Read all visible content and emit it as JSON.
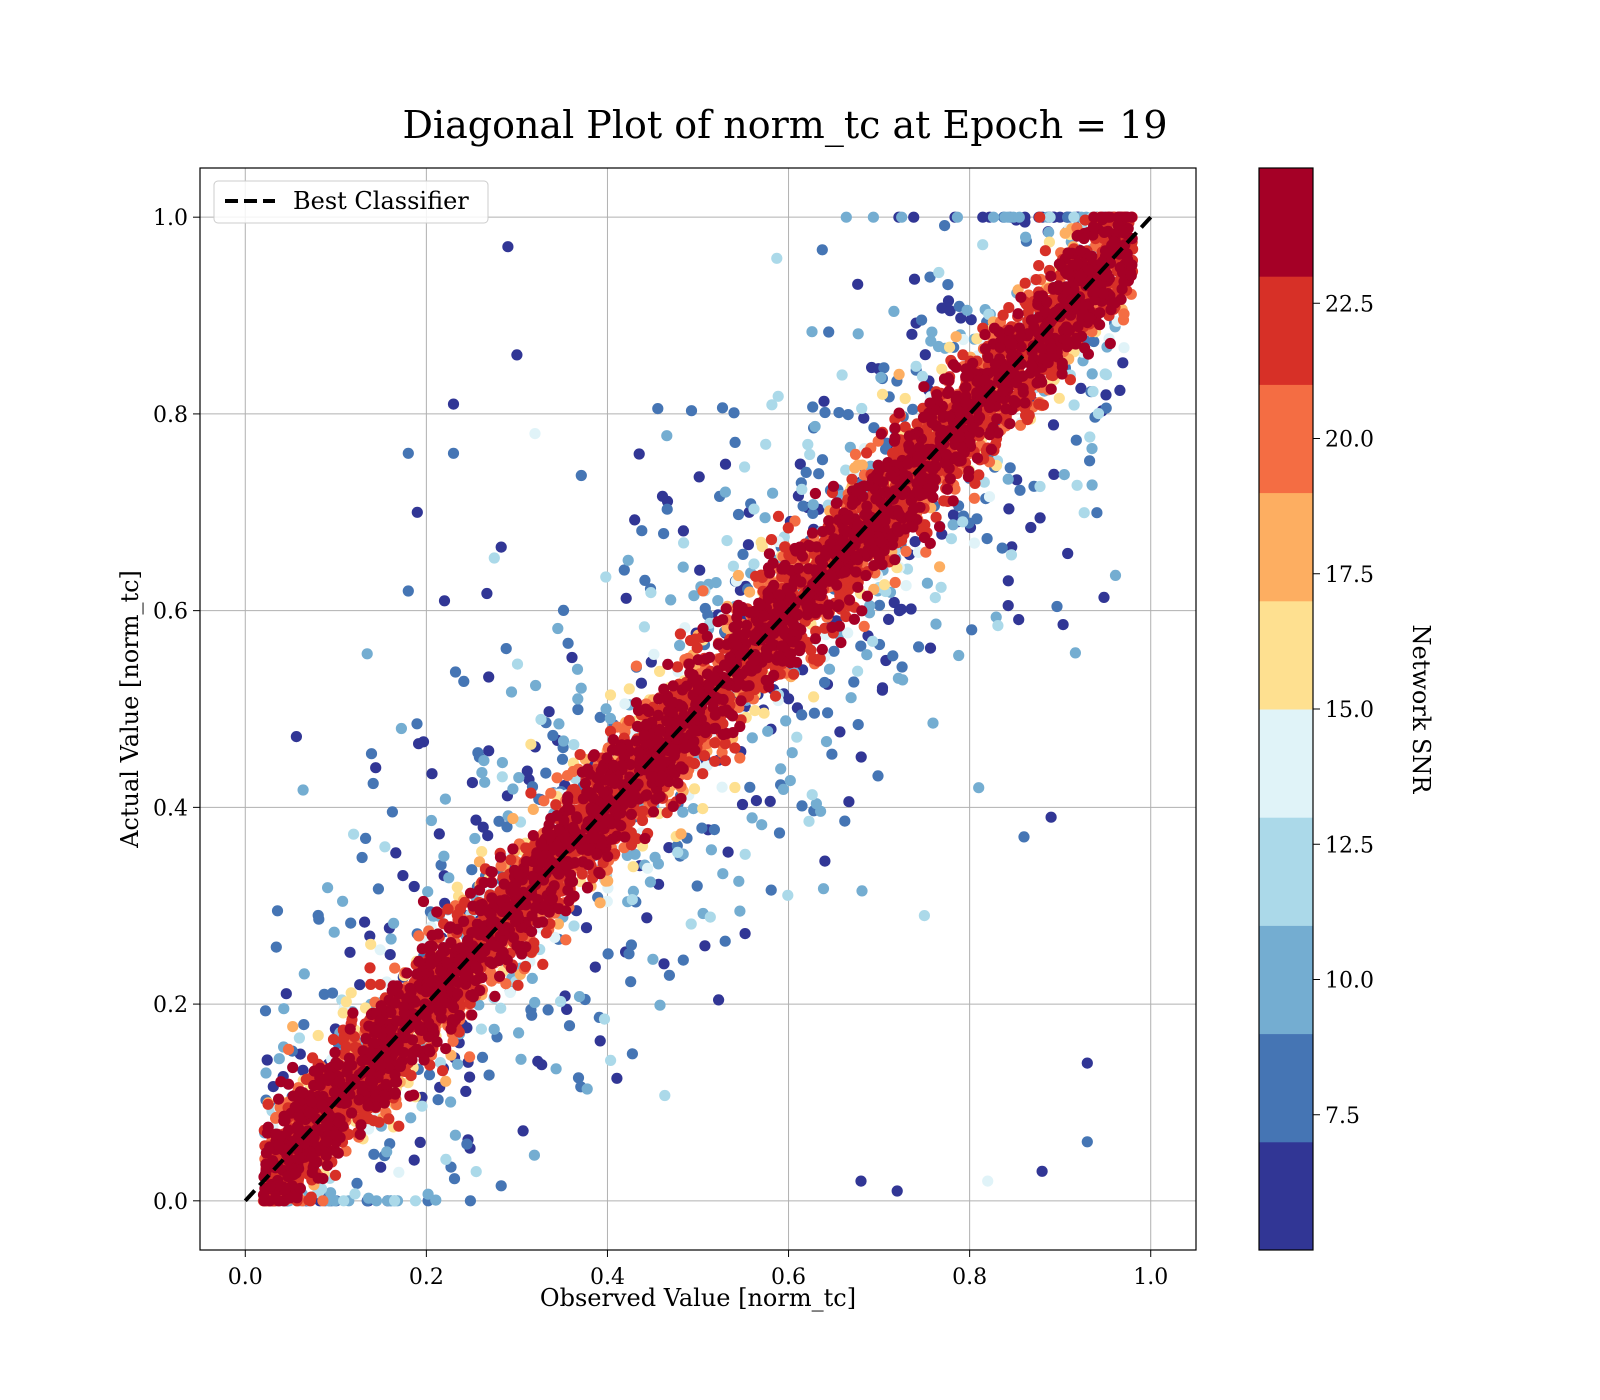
{
  "chart_data": {
    "type": "scatter",
    "title": "Diagonal Plot of norm_tc at Epoch = 19",
    "xlabel": "Observed Value [norm_tc]",
    "ylabel": "Actual Value [norm_tc]",
    "xlim": [
      -0.05,
      1.05
    ],
    "ylim": [
      -0.05,
      1.05
    ],
    "xticks": [
      "0.0",
      "0.2",
      "0.4",
      "0.6",
      "0.8",
      "1.0"
    ],
    "yticks": [
      "0.0",
      "0.2",
      "0.4",
      "0.6",
      "0.8",
      "1.0"
    ],
    "grid": true,
    "legend": {
      "placement": "top-left",
      "entries": [
        "Best Classifier"
      ]
    },
    "reference_line": {
      "name": "Best Classifier",
      "style": "dashed",
      "color": "#000000",
      "x": [
        0,
        1
      ],
      "y": [
        0,
        1
      ]
    },
    "colorbar": {
      "label": "Network SNR",
      "range": [
        5,
        25
      ],
      "ticks": [
        "7.5",
        "10.0",
        "12.5",
        "15.0",
        "17.5",
        "20.0",
        "22.5"
      ],
      "tick_values": [
        7.5,
        10.0,
        12.5,
        15.0,
        17.5,
        20.0,
        22.5
      ],
      "colors": [
        "#313695",
        "#4575b4",
        "#74add1",
        "#abd9e9",
        "#e0f3f8",
        "#fee090",
        "#fdae61",
        "#f46d43",
        "#d73027",
        "#a50026"
      ]
    },
    "points_note": "Points concentrate tightly along y = x with high SNR (dark red/orange); low SNR points (dark blue) scatter widely.",
    "sample_points": [
      {
        "x": 0.05,
        "y": 0.06,
        "snr": 24
      },
      {
        "x": 0.1,
        "y": 0.12,
        "snr": 23
      },
      {
        "x": 0.15,
        "y": 0.13,
        "snr": 21
      },
      {
        "x": 0.2,
        "y": 0.22,
        "snr": 24
      },
      {
        "x": 0.25,
        "y": 0.24,
        "snr": 19
      },
      {
        "x": 0.3,
        "y": 0.31,
        "snr": 23
      },
      {
        "x": 0.35,
        "y": 0.33,
        "snr": 22
      },
      {
        "x": 0.4,
        "y": 0.41,
        "snr": 24
      },
      {
        "x": 0.45,
        "y": 0.46,
        "snr": 20
      },
      {
        "x": 0.5,
        "y": 0.48,
        "snr": 23
      },
      {
        "x": 0.55,
        "y": 0.56,
        "snr": 24
      },
      {
        "x": 0.6,
        "y": 0.61,
        "snr": 21
      },
      {
        "x": 0.65,
        "y": 0.64,
        "snr": 23
      },
      {
        "x": 0.7,
        "y": 0.72,
        "snr": 24
      },
      {
        "x": 0.75,
        "y": 0.74,
        "snr": 22
      },
      {
        "x": 0.8,
        "y": 0.81,
        "snr": 23
      },
      {
        "x": 0.85,
        "y": 0.84,
        "snr": 24
      },
      {
        "x": 0.9,
        "y": 0.91,
        "snr": 20
      },
      {
        "x": 0.95,
        "y": 0.96,
        "snr": 24
      },
      {
        "x": 0.29,
        "y": 0.97,
        "snr": 5
      },
      {
        "x": 0.3,
        "y": 0.86,
        "snr": 6
      },
      {
        "x": 0.23,
        "y": 0.81,
        "snr": 5
      },
      {
        "x": 0.18,
        "y": 0.76,
        "snr": 8
      },
      {
        "x": 0.23,
        "y": 0.76,
        "snr": 8
      },
      {
        "x": 0.19,
        "y": 0.7,
        "snr": 5
      },
      {
        "x": 0.18,
        "y": 0.62,
        "snr": 8
      },
      {
        "x": 0.22,
        "y": 0.61,
        "snr": 5
      },
      {
        "x": 0.32,
        "y": 0.78,
        "snr": 13
      },
      {
        "x": 0.93,
        "y": 0.14,
        "snr": 5
      },
      {
        "x": 0.93,
        "y": 0.06,
        "snr": 8
      },
      {
        "x": 0.88,
        "y": 0.03,
        "snr": 5
      },
      {
        "x": 0.82,
        "y": 0.02,
        "snr": 13
      },
      {
        "x": 0.89,
        "y": 0.39,
        "snr": 5
      },
      {
        "x": 0.86,
        "y": 0.37,
        "snr": 8
      },
      {
        "x": 0.81,
        "y": 0.42,
        "snr": 10
      },
      {
        "x": 0.75,
        "y": 0.29,
        "snr": 11
      },
      {
        "x": 0.72,
        "y": 0.01,
        "snr": 5
      },
      {
        "x": 0.68,
        "y": 0.02,
        "snr": 5
      }
    ]
  }
}
